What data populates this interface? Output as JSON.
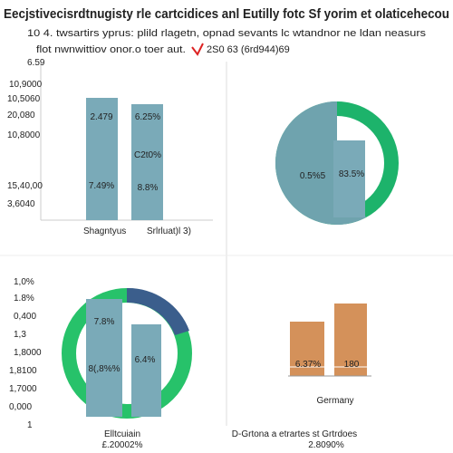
{
  "header": {
    "title": "Eecjstivecisrdtnugisty rle cartcidices anl Eutilly fotc Sf yorim et olaticehecou",
    "subtitle": "10 4. twsartirs yprus: plild rlagetn, opnad sevants lc wtandnor ne ldan neasurs",
    "note": "flot nwnwittiov onor.o toer aut.",
    "note_highlight": "2S0 63 (6rd944)69"
  },
  "panels": [
    {
      "axis_labels": [
        "6.59",
        "10,9000",
        "10,5060",
        "20,080",
        "10,8000",
        "15,40,00",
        "3,6040"
      ],
      "bar_labels": [
        "2.479",
        "6.25%",
        "C2t0%",
        "7.49%",
        "8.8%"
      ],
      "categories": [
        "Shagntyus",
        "Srlrluat)l 3)"
      ]
    },
    {
      "labels": [
        "0.5%5",
        "83.5%"
      ]
    },
    {
      "axis_labels": [
        "1,0%",
        "1.8%",
        "0,400",
        "1,3",
        "1,8000",
        "1,8100",
        "1,7000",
        "0,000",
        "1"
      ],
      "labels": [
        "7.8%",
        "6.4%",
        "8(,8%%"
      ],
      "footer": [
        "Elltcuiain",
        "£.20002%"
      ]
    },
    {
      "labels": [
        "6.37%",
        "180"
      ],
      "category": "Germany",
      "footer": [
        "D-Grtona a etrartes st Grtrdoes",
        "2.8090%"
      ]
    }
  ]
}
